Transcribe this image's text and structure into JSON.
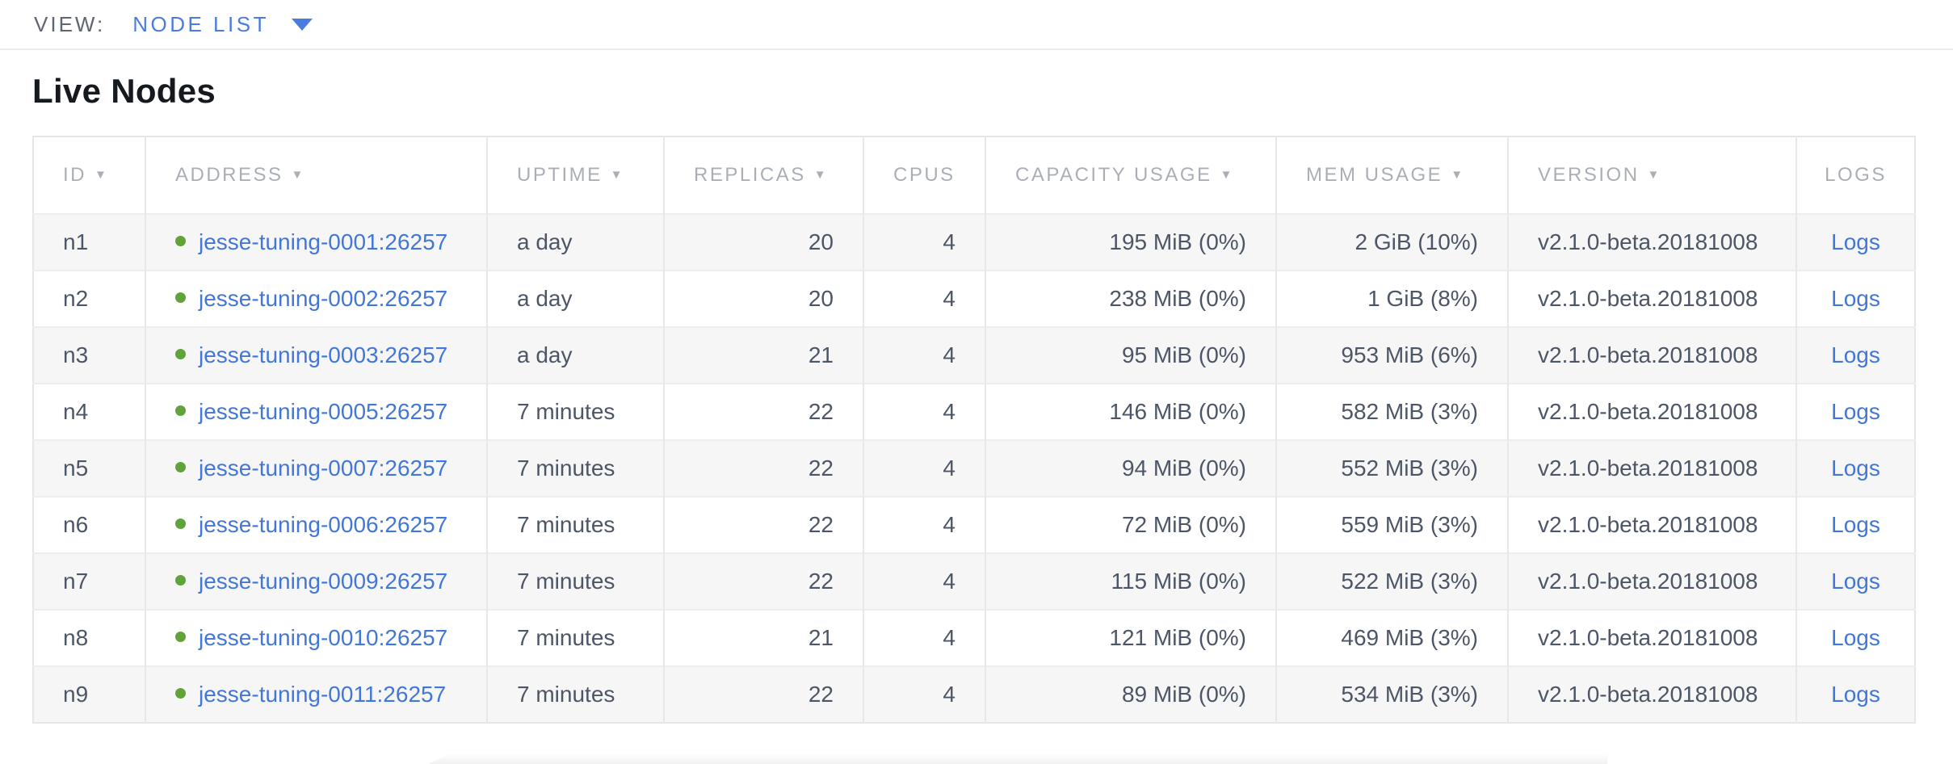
{
  "view_bar": {
    "label": "VIEW:",
    "selected_view": "NODE LIST",
    "dropdown_icon": "caret-down-icon"
  },
  "page": {
    "title": "Live Nodes"
  },
  "table": {
    "columns": [
      {
        "label": "ID",
        "sortable": true,
        "align": "left"
      },
      {
        "label": "ADDRESS",
        "sortable": true,
        "align": "left"
      },
      {
        "label": "UPTIME",
        "sortable": true,
        "align": "left"
      },
      {
        "label": "REPLICAS",
        "sortable": true,
        "align": "right"
      },
      {
        "label": "CPUS",
        "sortable": false,
        "align": "right"
      },
      {
        "label": "CAPACITY USAGE",
        "sortable": true,
        "align": "right"
      },
      {
        "label": "MEM USAGE",
        "sortable": true,
        "align": "right"
      },
      {
        "label": "VERSION",
        "sortable": true,
        "align": "left"
      },
      {
        "label": "LOGS",
        "sortable": false,
        "align": "center"
      }
    ],
    "sort_arrow_glyph": "▼",
    "rows": [
      {
        "id": "n1",
        "status": "healthy",
        "address": "jesse-tuning-0001:26257",
        "uptime": "a day",
        "replicas": "20",
        "cpus": "4",
        "capacity": "195 MiB (0%)",
        "mem": "2 GiB (10%)",
        "version": "v2.1.0-beta.20181008",
        "logs": "Logs"
      },
      {
        "id": "n2",
        "status": "healthy",
        "address": "jesse-tuning-0002:26257",
        "uptime": "a day",
        "replicas": "20",
        "cpus": "4",
        "capacity": "238 MiB (0%)",
        "mem": "1 GiB (8%)",
        "version": "v2.1.0-beta.20181008",
        "logs": "Logs"
      },
      {
        "id": "n3",
        "status": "healthy",
        "address": "jesse-tuning-0003:26257",
        "uptime": "a day",
        "replicas": "21",
        "cpus": "4",
        "capacity": "95 MiB (0%)",
        "mem": "953 MiB (6%)",
        "version": "v2.1.0-beta.20181008",
        "logs": "Logs"
      },
      {
        "id": "n4",
        "status": "healthy",
        "address": "jesse-tuning-0005:26257",
        "uptime": "7 minutes",
        "replicas": "22",
        "cpus": "4",
        "capacity": "146 MiB (0%)",
        "mem": "582 MiB (3%)",
        "version": "v2.1.0-beta.20181008",
        "logs": "Logs"
      },
      {
        "id": "n5",
        "status": "healthy",
        "address": "jesse-tuning-0007:26257",
        "uptime": "7 minutes",
        "replicas": "22",
        "cpus": "4",
        "capacity": "94 MiB (0%)",
        "mem": "552 MiB (3%)",
        "version": "v2.1.0-beta.20181008",
        "logs": "Logs"
      },
      {
        "id": "n6",
        "status": "healthy",
        "address": "jesse-tuning-0006:26257",
        "uptime": "7 minutes",
        "replicas": "22",
        "cpus": "4",
        "capacity": "72 MiB (0%)",
        "mem": "559 MiB (3%)",
        "version": "v2.1.0-beta.20181008",
        "logs": "Logs"
      },
      {
        "id": "n7",
        "status": "healthy",
        "address": "jesse-tuning-0009:26257",
        "uptime": "7 minutes",
        "replicas": "22",
        "cpus": "4",
        "capacity": "115 MiB (0%)",
        "mem": "522 MiB (3%)",
        "version": "v2.1.0-beta.20181008",
        "logs": "Logs"
      },
      {
        "id": "n8",
        "status": "healthy",
        "address": "jesse-tuning-0010:26257",
        "uptime": "7 minutes",
        "replicas": "21",
        "cpus": "4",
        "capacity": "121 MiB (0%)",
        "mem": "469 MiB (3%)",
        "version": "v2.1.0-beta.20181008",
        "logs": "Logs"
      },
      {
        "id": "n9",
        "status": "healthy",
        "address": "jesse-tuning-0011:26257",
        "uptime": "7 minutes",
        "replicas": "22",
        "cpus": "4",
        "capacity": "89 MiB (0%)",
        "mem": "534 MiB (3%)",
        "version": "v2.1.0-beta.20181008",
        "logs": "Logs"
      }
    ]
  },
  "colors": {
    "accent_blue": "#4a7ce0",
    "link_blue": "#4277da",
    "healthy_green": "#5fa33a",
    "header_gray": "#abafb5"
  }
}
